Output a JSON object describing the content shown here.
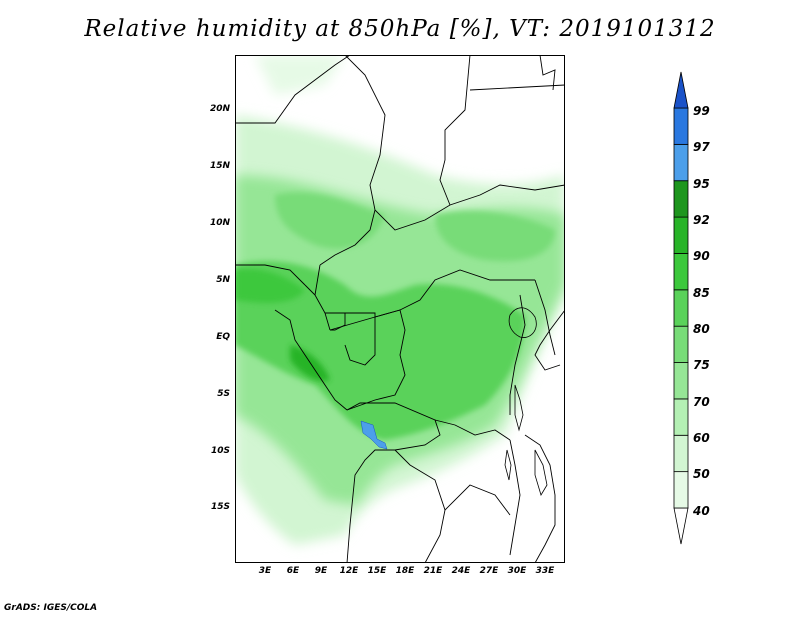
{
  "title": "Relative humidity at 850hPa [%], VT: 2019101312",
  "credit": "GrADS: IGES/COLA",
  "lat_labels": [
    "20N",
    "15N",
    "10N",
    "5N",
    "EQ",
    "5S",
    "10S",
    "15S"
  ],
  "lon_labels": [
    "3E",
    "6E",
    "9E",
    "12E",
    "15E",
    "18E",
    "21E",
    "24E",
    "27E",
    "30E",
    "33E"
  ],
  "colorbar": {
    "labels": [
      "40",
      "50",
      "60",
      "70",
      "75",
      "80",
      "85",
      "90",
      "92",
      "95",
      "97",
      "99"
    ],
    "colors": [
      "#ffffff",
      "#e6fae6",
      "#d2f5d2",
      "#b4f0b4",
      "#96e696",
      "#78dc78",
      "#5ad25a",
      "#3cc83c",
      "#28b428",
      "#1e961e",
      "#4c9fea",
      "#2a78e0",
      "#1a52c8"
    ]
  },
  "map": {
    "lon_range": [
      0,
      34
    ],
    "lat_range": [
      -20,
      25
    ]
  }
}
